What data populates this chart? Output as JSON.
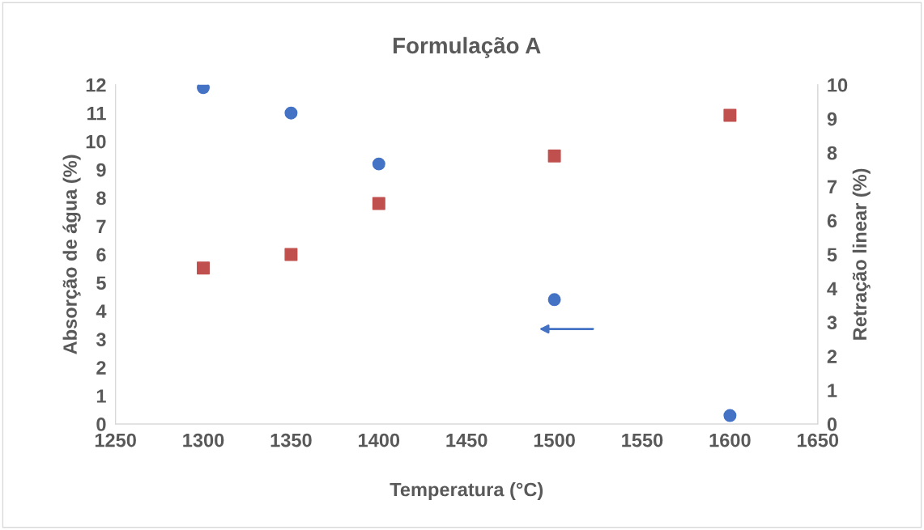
{
  "chart_data": {
    "type": "scatter",
    "title": "Formulação A",
    "xlabel": "Temperatura (°C)",
    "ylabel": "Absorção de água (%)",
    "y2label": "Retração linear (%)",
    "x": [
      1300,
      1350,
      1400,
      1500,
      1600
    ],
    "series": [
      {
        "color": "#4472c4",
        "marker": "circle",
        "values": [
          11.9,
          11.0,
          9.2,
          4.4,
          0.3
        ]
      },
      {
        "color": "#c0504d",
        "marker": "square",
        "axis": "y2",
        "values": [
          4.6,
          5.0,
          6.5,
          7.9,
          9.1
        ]
      }
    ],
    "xlim": [
      1250,
      1650
    ],
    "xticks": [
      1250,
      1300,
      1350,
      1400,
      1450,
      1500,
      1550,
      1600,
      1650
    ],
    "ylim": [
      0,
      12
    ],
    "yticks": [
      0,
      1,
      2,
      3,
      4,
      5,
      6,
      7,
      8,
      9,
      10,
      11,
      12
    ],
    "y2lim": [
      0,
      10
    ],
    "y2ticks": [
      0,
      1,
      2,
      3,
      4,
      5,
      6,
      7,
      8,
      9,
      10
    ],
    "grid": false,
    "legend": false
  }
}
